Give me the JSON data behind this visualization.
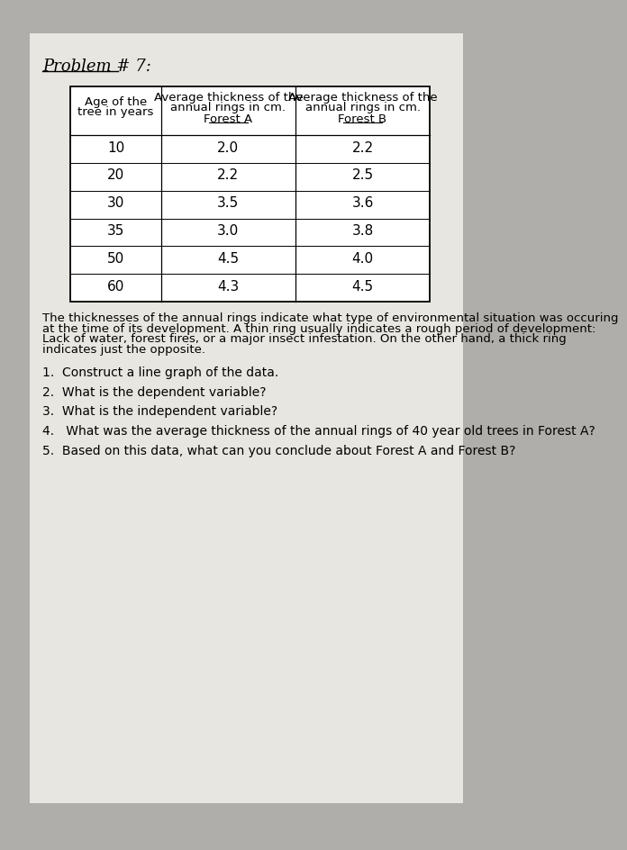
{
  "title": "Problem # 7:",
  "bg_color": "#b0aeaa",
  "paper_color": "#e8e6e0",
  "col1_header_line1": "Age of the",
  "col1_header_line2": "tree in years",
  "col2_header_line1": "Average thickness of the",
  "col2_header_line2": "annual rings in cm.",
  "col2_header_line3": "Forest A",
  "col3_header_line1": "Average thickness of the",
  "col3_header_line2": "annual rings in cm.",
  "col3_header_line3": "Forest B",
  "ages": [
    10,
    20,
    30,
    35,
    50,
    60
  ],
  "forest_a": [
    2.0,
    2.2,
    3.5,
    3.0,
    4.5,
    4.3
  ],
  "forest_b": [
    2.2,
    2.5,
    3.6,
    3.8,
    4.0,
    4.5
  ],
  "description_lines": [
    "The thicknesses of the annual rings indicate what type of environmental situation was occuring",
    "at the time of its development. A thin ring usually indicates a rough period of development:",
    "Lack of water, forest fires, or a major insect infestation. On the other hand, a thick ring",
    "indicates just the opposite."
  ],
  "questions": [
    "1.  Construct a line graph of the data.",
    "2.  What is the dependent variable?",
    "3.  What is the independent variable?",
    "4.   What was the average thickness of the annual rings of 40 year old trees in Forest A?",
    "5.  Based on this data, what can you conclude about Forest A and Forest B?"
  ],
  "font_size_title": 13,
  "font_size_table_header": 9.5,
  "font_size_table_data": 11,
  "font_size_body": 9.5,
  "font_size_questions": 10
}
